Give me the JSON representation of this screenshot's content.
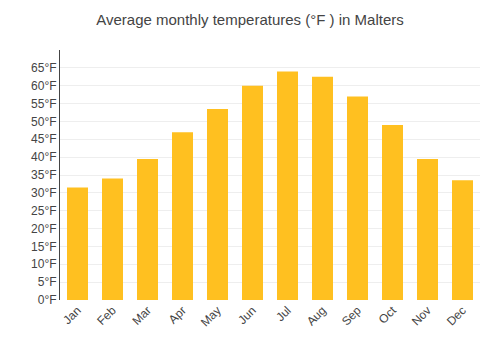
{
  "chart_data": {
    "type": "bar",
    "title": "Average monthly temperatures (°F ) in Malters",
    "categories": [
      "Jan",
      "Feb",
      "Mar",
      "Apr",
      "May",
      "Jun",
      "Jul",
      "Aug",
      "Sep",
      "Oct",
      "Nov",
      "Dec"
    ],
    "values": [
      31.5,
      34.0,
      39.5,
      47.0,
      53.5,
      60.0,
      64.0,
      62.5,
      57.0,
      49.0,
      39.5,
      33.5
    ],
    "color": "#FFC020",
    "ylim": [
      0,
      70
    ],
    "yticks": [
      {
        "value": 0,
        "label": "0°F"
      },
      {
        "value": 5,
        "label": "5°F"
      },
      {
        "value": 10,
        "label": "10°F"
      },
      {
        "value": 15,
        "label": "15°F"
      },
      {
        "value": 20,
        "label": "20°F"
      },
      {
        "value": 25,
        "label": "25°F"
      },
      {
        "value": 30,
        "label": "30°F"
      },
      {
        "value": 35,
        "label": "35°F"
      },
      {
        "value": 40,
        "label": "40°F"
      },
      {
        "value": 45,
        "label": "45°F"
      },
      {
        "value": 50,
        "label": "50°F"
      },
      {
        "value": 55,
        "label": "55°F"
      },
      {
        "value": 60,
        "label": "60°F"
      },
      {
        "value": 65,
        "label": "65°F"
      }
    ],
    "grid": true
  }
}
